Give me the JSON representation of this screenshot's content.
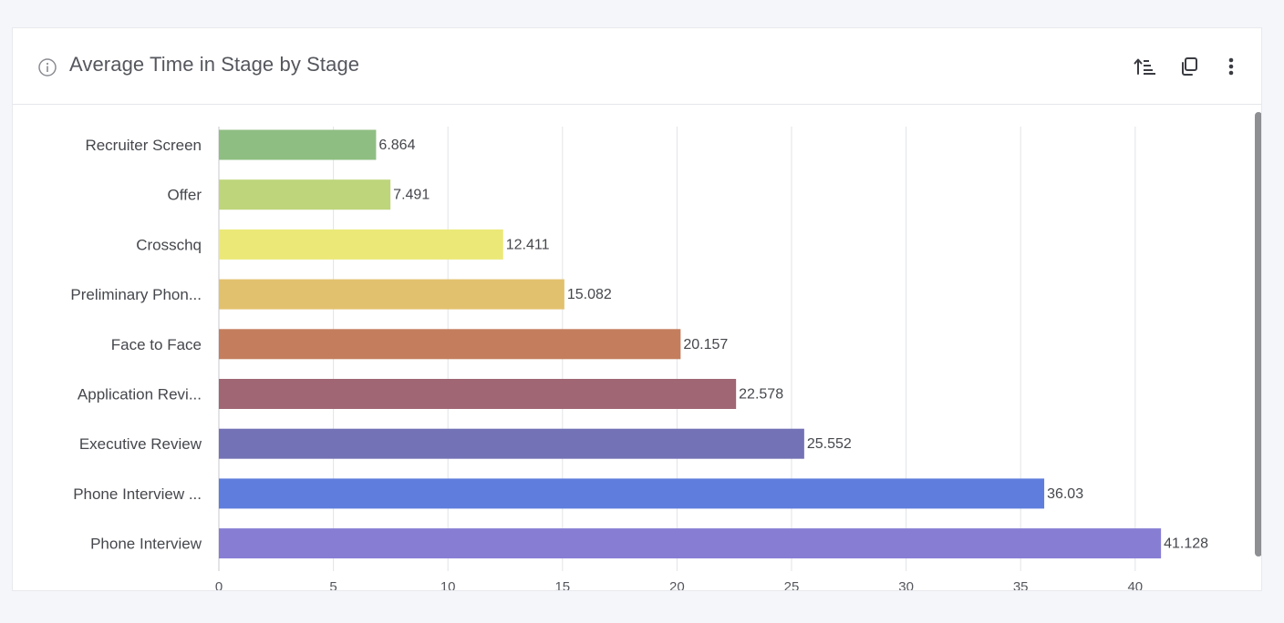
{
  "card": {
    "title": "Average Time in Stage by Stage",
    "icons": {
      "info": "info-circle-icon",
      "sort": "sort-ascending-icon",
      "copy": "copy-icon",
      "more": "more-vertical-icon"
    }
  },
  "chart_data": {
    "type": "bar",
    "orientation": "horizontal",
    "title": "Average Time in Stage by Stage",
    "xlabel": "",
    "ylabel": "",
    "categories": [
      "Recruiter Screen",
      "Offer",
      "Crosschq",
      "Preliminary Phon...",
      "Face to Face",
      "Application Revi...",
      "Executive Review",
      "Phone Interview ...",
      "Phone Interview"
    ],
    "values": [
      6.864,
      7.491,
      12.411,
      15.082,
      20.157,
      22.578,
      25.552,
      36.03,
      41.128
    ],
    "value_labels": [
      "6.864",
      "7.491",
      "12.411",
      "15.082",
      "20.157",
      "22.578",
      "25.552",
      "36.03",
      "41.128"
    ],
    "colors": [
      "#8fbe82",
      "#bed57b",
      "#ebe878",
      "#e2c16e",
      "#c47e5d",
      "#a06673",
      "#7472b6",
      "#5f7ddd",
      "#877ed4"
    ],
    "xlim": [
      0,
      42
    ],
    "ticks": [
      0,
      5,
      10,
      15,
      20,
      25,
      30,
      35,
      40
    ],
    "tick_labels": [
      "0",
      "5",
      "10",
      "15",
      "20",
      "25",
      "30",
      "35",
      "40"
    ],
    "grid": true,
    "legend": "none"
  }
}
